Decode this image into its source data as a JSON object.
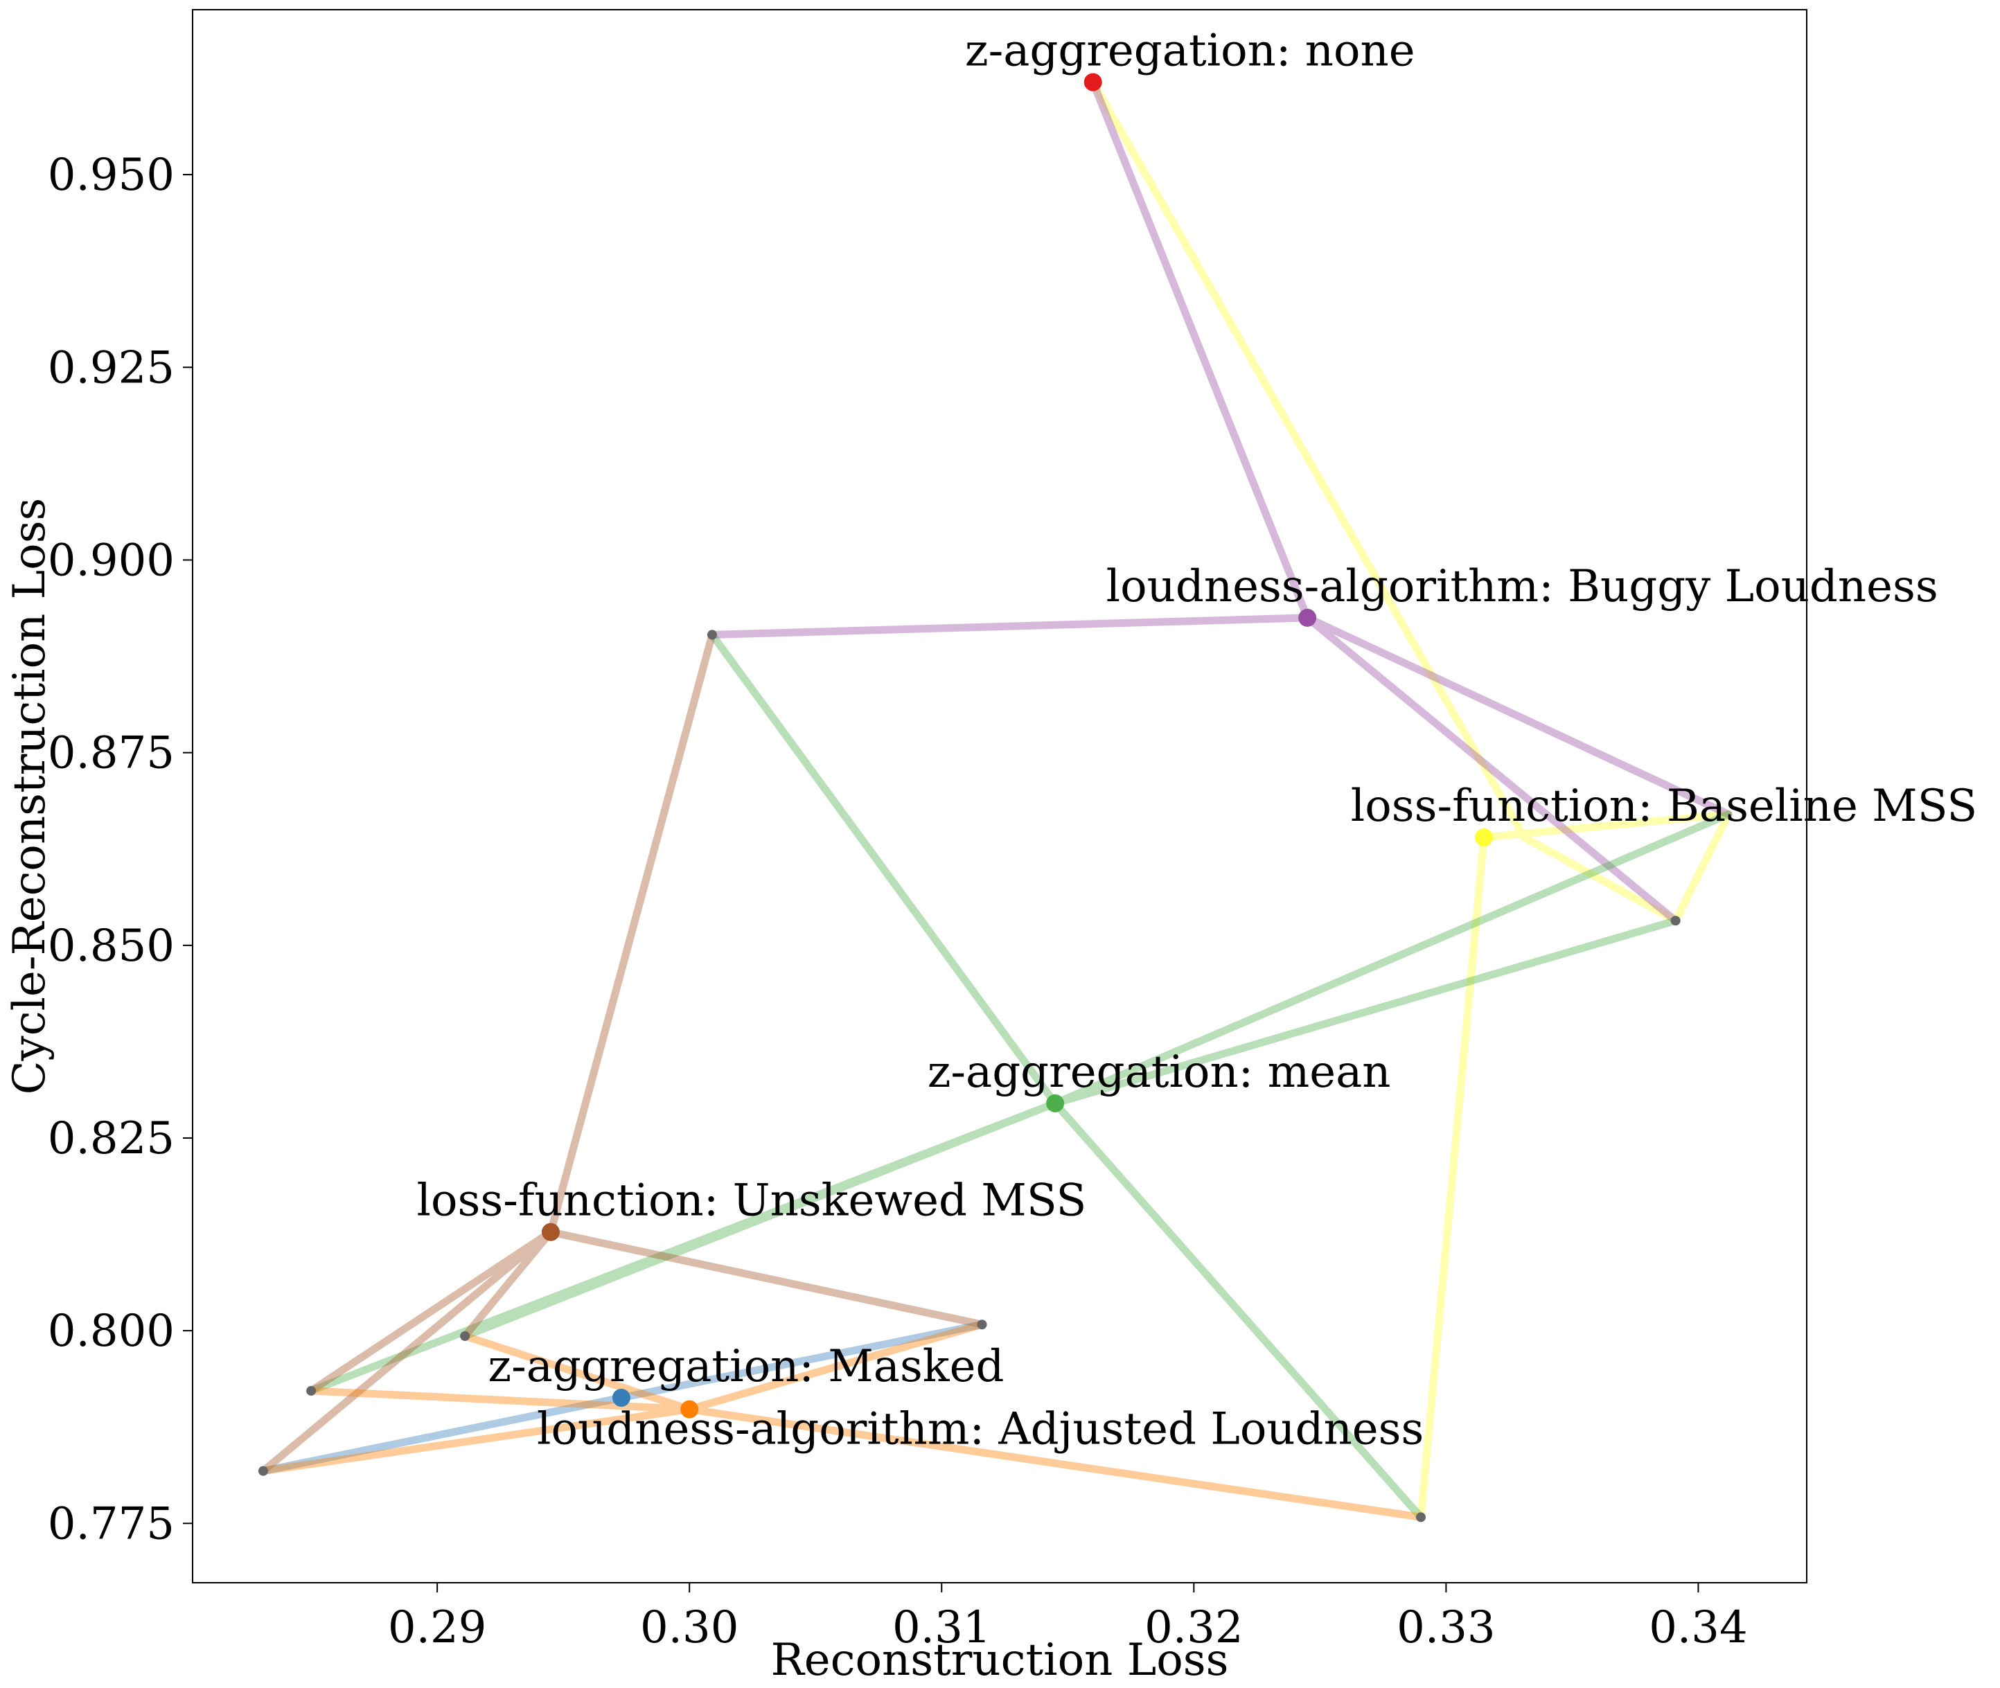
{
  "chart_data": {
    "type": "scatter",
    "title": "",
    "xlabel": "Reconstruction Loss",
    "ylabel": "Cycle-Reconstruction Loss",
    "xlim": [
      0.2803,
      0.3443
    ],
    "ylim": [
      0.7673,
      0.9714
    ],
    "xticks": [
      {
        "value": 0.29,
        "label": "0.29"
      },
      {
        "value": 0.3,
        "label": "0.30"
      },
      {
        "value": 0.31,
        "label": "0.31"
      },
      {
        "value": 0.32,
        "label": "0.32"
      },
      {
        "value": 0.33,
        "label": "0.33"
      },
      {
        "value": 0.34,
        "label": "0.34"
      }
    ],
    "yticks": [
      {
        "value": 0.775,
        "label": "0.775"
      },
      {
        "value": 0.8,
        "label": "0.800"
      },
      {
        "value": 0.825,
        "label": "0.825"
      },
      {
        "value": 0.85,
        "label": "0.850"
      },
      {
        "value": 0.875,
        "label": "0.875"
      },
      {
        "value": 0.9,
        "label": "0.900"
      },
      {
        "value": 0.925,
        "label": "0.925"
      },
      {
        "value": 0.95,
        "label": "0.950"
      }
    ],
    "grid": false,
    "legend": "none",
    "point_color": "#666666",
    "groups": [
      {
        "label": "z-aggregation: none",
        "color": "#e41a1c",
        "line_color": "#ffff33",
        "mean": [
          0.316,
          0.962
        ],
        "points": [
          [
            0.316,
            0.962
          ],
          [
            0.3331,
            0.864
          ],
          [
            0.3391,
            0.8532
          ],
          [
            0.3412,
            0.867
          ],
          [
            0.3315,
            0.864
          ],
          [
            0.329,
            0.7758
          ]
        ]
      },
      {
        "label": "loudness-algorithm: Buggy Loudness",
        "color": "#984ea3",
        "line_color": "#984ea3",
        "mean": [
          0.3245,
          0.8925
        ],
        "points": [
          [
            0.316,
            0.962
          ],
          [
            0.3245,
            0.8925
          ],
          [
            0.3391,
            0.8532
          ],
          [
            0.3245,
            0.8925
          ],
          [
            0.3412,
            0.867
          ],
          [
            0.3245,
            0.8925
          ],
          [
            0.3009,
            0.8903
          ]
        ]
      },
      {
        "label": "loss-function: Baseline MSS",
        "color": "#ffff33",
        "line_color": "#ffff33",
        "mean": [
          0.3315,
          0.864
        ],
        "points": []
      },
      {
        "label": "z-aggregation: mean",
        "color": "#4daf4a",
        "line_color": "#4daf4a",
        "mean": [
          0.3145,
          0.8295
        ],
        "points": [
          [
            0.3009,
            0.8903
          ],
          [
            0.3145,
            0.8295
          ],
          [
            0.329,
            0.7758
          ],
          [
            0.3145,
            0.8295
          ],
          [
            0.3391,
            0.8532
          ],
          [
            0.3145,
            0.8295
          ],
          [
            0.3412,
            0.867
          ],
          [
            0.3145,
            0.8295
          ],
          [
            0.2911,
            0.7993
          ],
          [
            0.3145,
            0.8295
          ],
          [
            0.285,
            0.7922
          ]
        ]
      },
      {
        "label": "loss-function: Unskewed MSS",
        "color": "#a65628",
        "line_color": "#a65628",
        "mean": [
          0.2945,
          0.8128
        ],
        "points": [
          [
            0.3009,
            0.8903
          ],
          [
            0.2945,
            0.8128
          ],
          [
            0.3116,
            0.8008
          ],
          [
            0.2945,
            0.8128
          ],
          [
            0.2911,
            0.7993
          ],
          [
            0.2945,
            0.8128
          ],
          [
            0.285,
            0.7922
          ],
          [
            0.2945,
            0.8128
          ],
          [
            0.2831,
            0.7818
          ]
        ]
      },
      {
        "label": "z-aggregation: Masked",
        "color": "#377eb8",
        "line_color": "#377eb8",
        "mean": [
          0.2973,
          0.7913
        ],
        "points": [
          [
            0.3116,
            0.8008
          ],
          [
            0.2973,
            0.7913
          ],
          [
            0.2831,
            0.7818
          ]
        ]
      },
      {
        "label": "loudness-algorithm: Adjusted Loudness",
        "color": "#ff7f00",
        "line_color": "#ff7f00",
        "mean": [
          0.3,
          0.7898
        ],
        "points": [
          [
            0.3116,
            0.8008
          ],
          [
            0.3,
            0.7898
          ],
          [
            0.2911,
            0.7993
          ],
          [
            0.3,
            0.7898
          ],
          [
            0.285,
            0.7922
          ],
          [
            0.3,
            0.7898
          ],
          [
            0.329,
            0.7758
          ],
          [
            0.3,
            0.7898
          ],
          [
            0.2831,
            0.7818
          ]
        ]
      }
    ],
    "endpoints": [
      [
        0.3009,
        0.8903
      ],
      [
        0.3391,
        0.8532
      ],
      [
        0.3116,
        0.8008
      ],
      [
        0.2911,
        0.7993
      ],
      [
        0.285,
        0.7922
      ],
      [
        0.2831,
        0.7818
      ],
      [
        0.329,
        0.7758
      ]
    ]
  }
}
